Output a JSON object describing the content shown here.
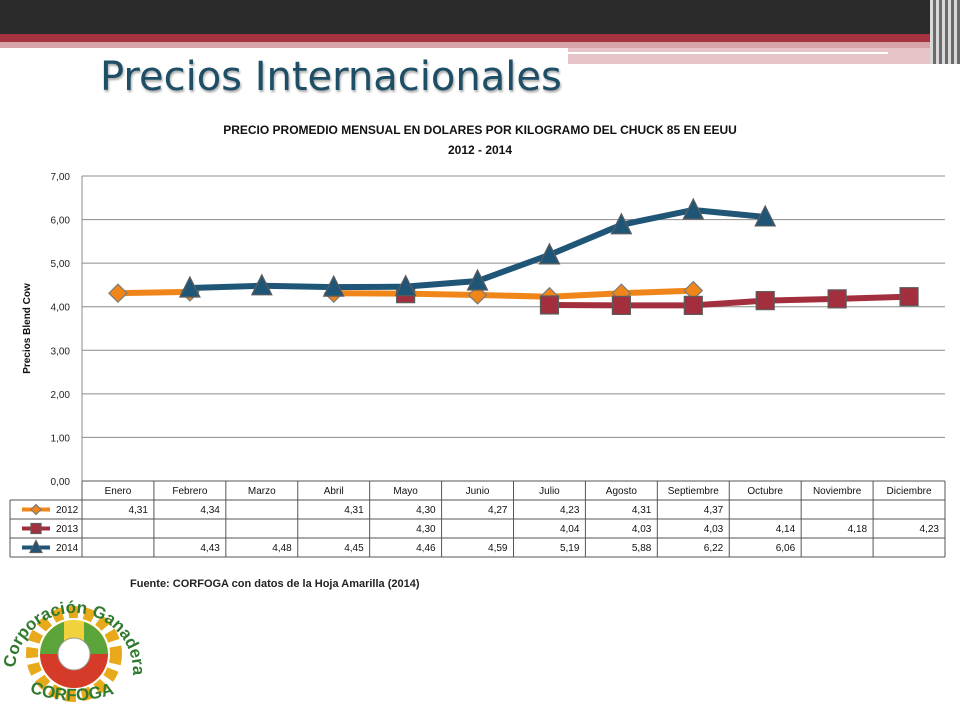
{
  "slide": {
    "title": "Precios Internacionales"
  },
  "chart_data": {
    "type": "line",
    "title": "PRECIO PROMEDIO MENSUAL EN DOLARES POR KILOGRAMO DEL CHUCK 85 EN EEUU",
    "subtitle": "2012 - 2014",
    "xlabel": "",
    "ylabel": "Precios Blend Cow",
    "ylim": [
      0,
      7
    ],
    "yticks": [
      "0,00",
      "1,00",
      "2,00",
      "3,00",
      "4,00",
      "5,00",
      "6,00",
      "7,00"
    ],
    "grid": true,
    "legend": "data-table",
    "categories": [
      "Enero",
      "Febrero",
      "Marzo",
      "Abril",
      "Mayo",
      "Junio",
      "Julio",
      "Agosto",
      "Septiembre",
      "Octubre",
      "Noviembre",
      "Diciembre"
    ],
    "series": [
      {
        "name": "2012",
        "color": "#f0861a",
        "marker": "diamond",
        "values": [
          4.31,
          4.34,
          null,
          4.31,
          4.3,
          4.27,
          4.23,
          4.31,
          4.37,
          null,
          null,
          null
        ],
        "labels": [
          "4,31",
          "4,34",
          "",
          "4,31",
          "4,30",
          "4,27",
          "4,23",
          "4,31",
          "4,37",
          "",
          "",
          ""
        ]
      },
      {
        "name": "2013",
        "color": "#a32f3e",
        "marker": "square",
        "values": [
          null,
          null,
          null,
          null,
          4.3,
          null,
          4.04,
          4.03,
          4.03,
          4.14,
          4.18,
          4.23
        ],
        "labels": [
          "",
          "",
          "",
          "",
          "4,30",
          "",
          "4,04",
          "4,03",
          "4,03",
          "4,14",
          "4,18",
          "4,23"
        ]
      },
      {
        "name": "2014",
        "color": "#1f5678",
        "marker": "triangle",
        "values": [
          null,
          4.43,
          4.48,
          4.45,
          4.46,
          4.59,
          5.19,
          5.88,
          6.22,
          6.06,
          null,
          null
        ],
        "labels": [
          "",
          "4,43",
          "4,48",
          "4,45",
          "4,46",
          "4,59",
          "5,19",
          "5,88",
          "6,22",
          "6,06",
          "",
          ""
        ]
      }
    ]
  },
  "source": "Fuente: CORFOGA  con datos de la Hoja Amarilla (2014)",
  "logo": {
    "top_text": "Corporación Ganadera",
    "bottom_text": "CORFOGA"
  }
}
